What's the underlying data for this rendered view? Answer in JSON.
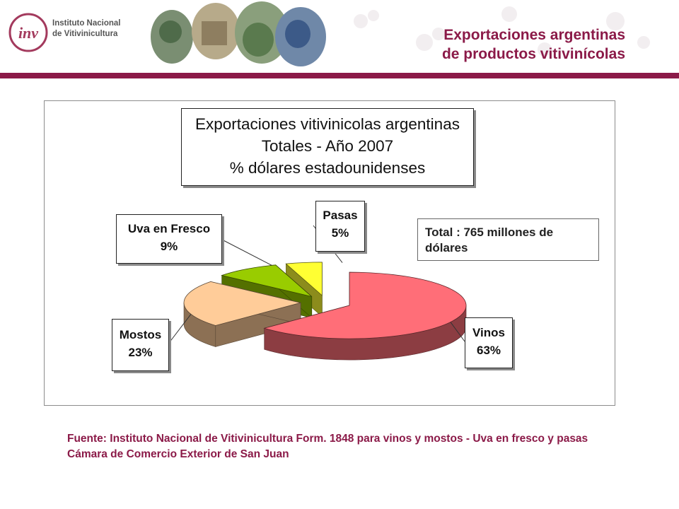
{
  "header": {
    "org_line1": "Instituto Nacional",
    "org_line2": "de Vitivinicultura",
    "logo_text": "inv",
    "title_line1": "Exportaciones argentinas",
    "title_line2": "de productos vitivinícolas"
  },
  "colors": {
    "brand": "#8b1a48"
  },
  "chart_data": {
    "type": "pie",
    "title_lines": [
      "Exportaciones vitivinicolas argentinas",
      "Totales - Año 2007",
      "% dólares estadounidenses"
    ],
    "unit": "%",
    "categories": [
      "Vinos",
      "Mostos",
      "Uva en Fresco",
      "Pasas"
    ],
    "values": [
      63,
      23,
      9,
      5
    ],
    "value_labels": [
      "63%",
      "23%",
      "9%",
      "5%"
    ],
    "colors": [
      "#ff6e78",
      "#ffcc99",
      "#99cc00",
      "#ffff33"
    ],
    "annotation": "Total : 765 millones de dólares",
    "style": "3d-exploded"
  },
  "source_note": "Fuente: Instituto Nacional de Vitivinicultura Form. 1848 para vinos y mostos  - Uva en fresco y pasas Cámara de Comercio Exterior de San Juan"
}
